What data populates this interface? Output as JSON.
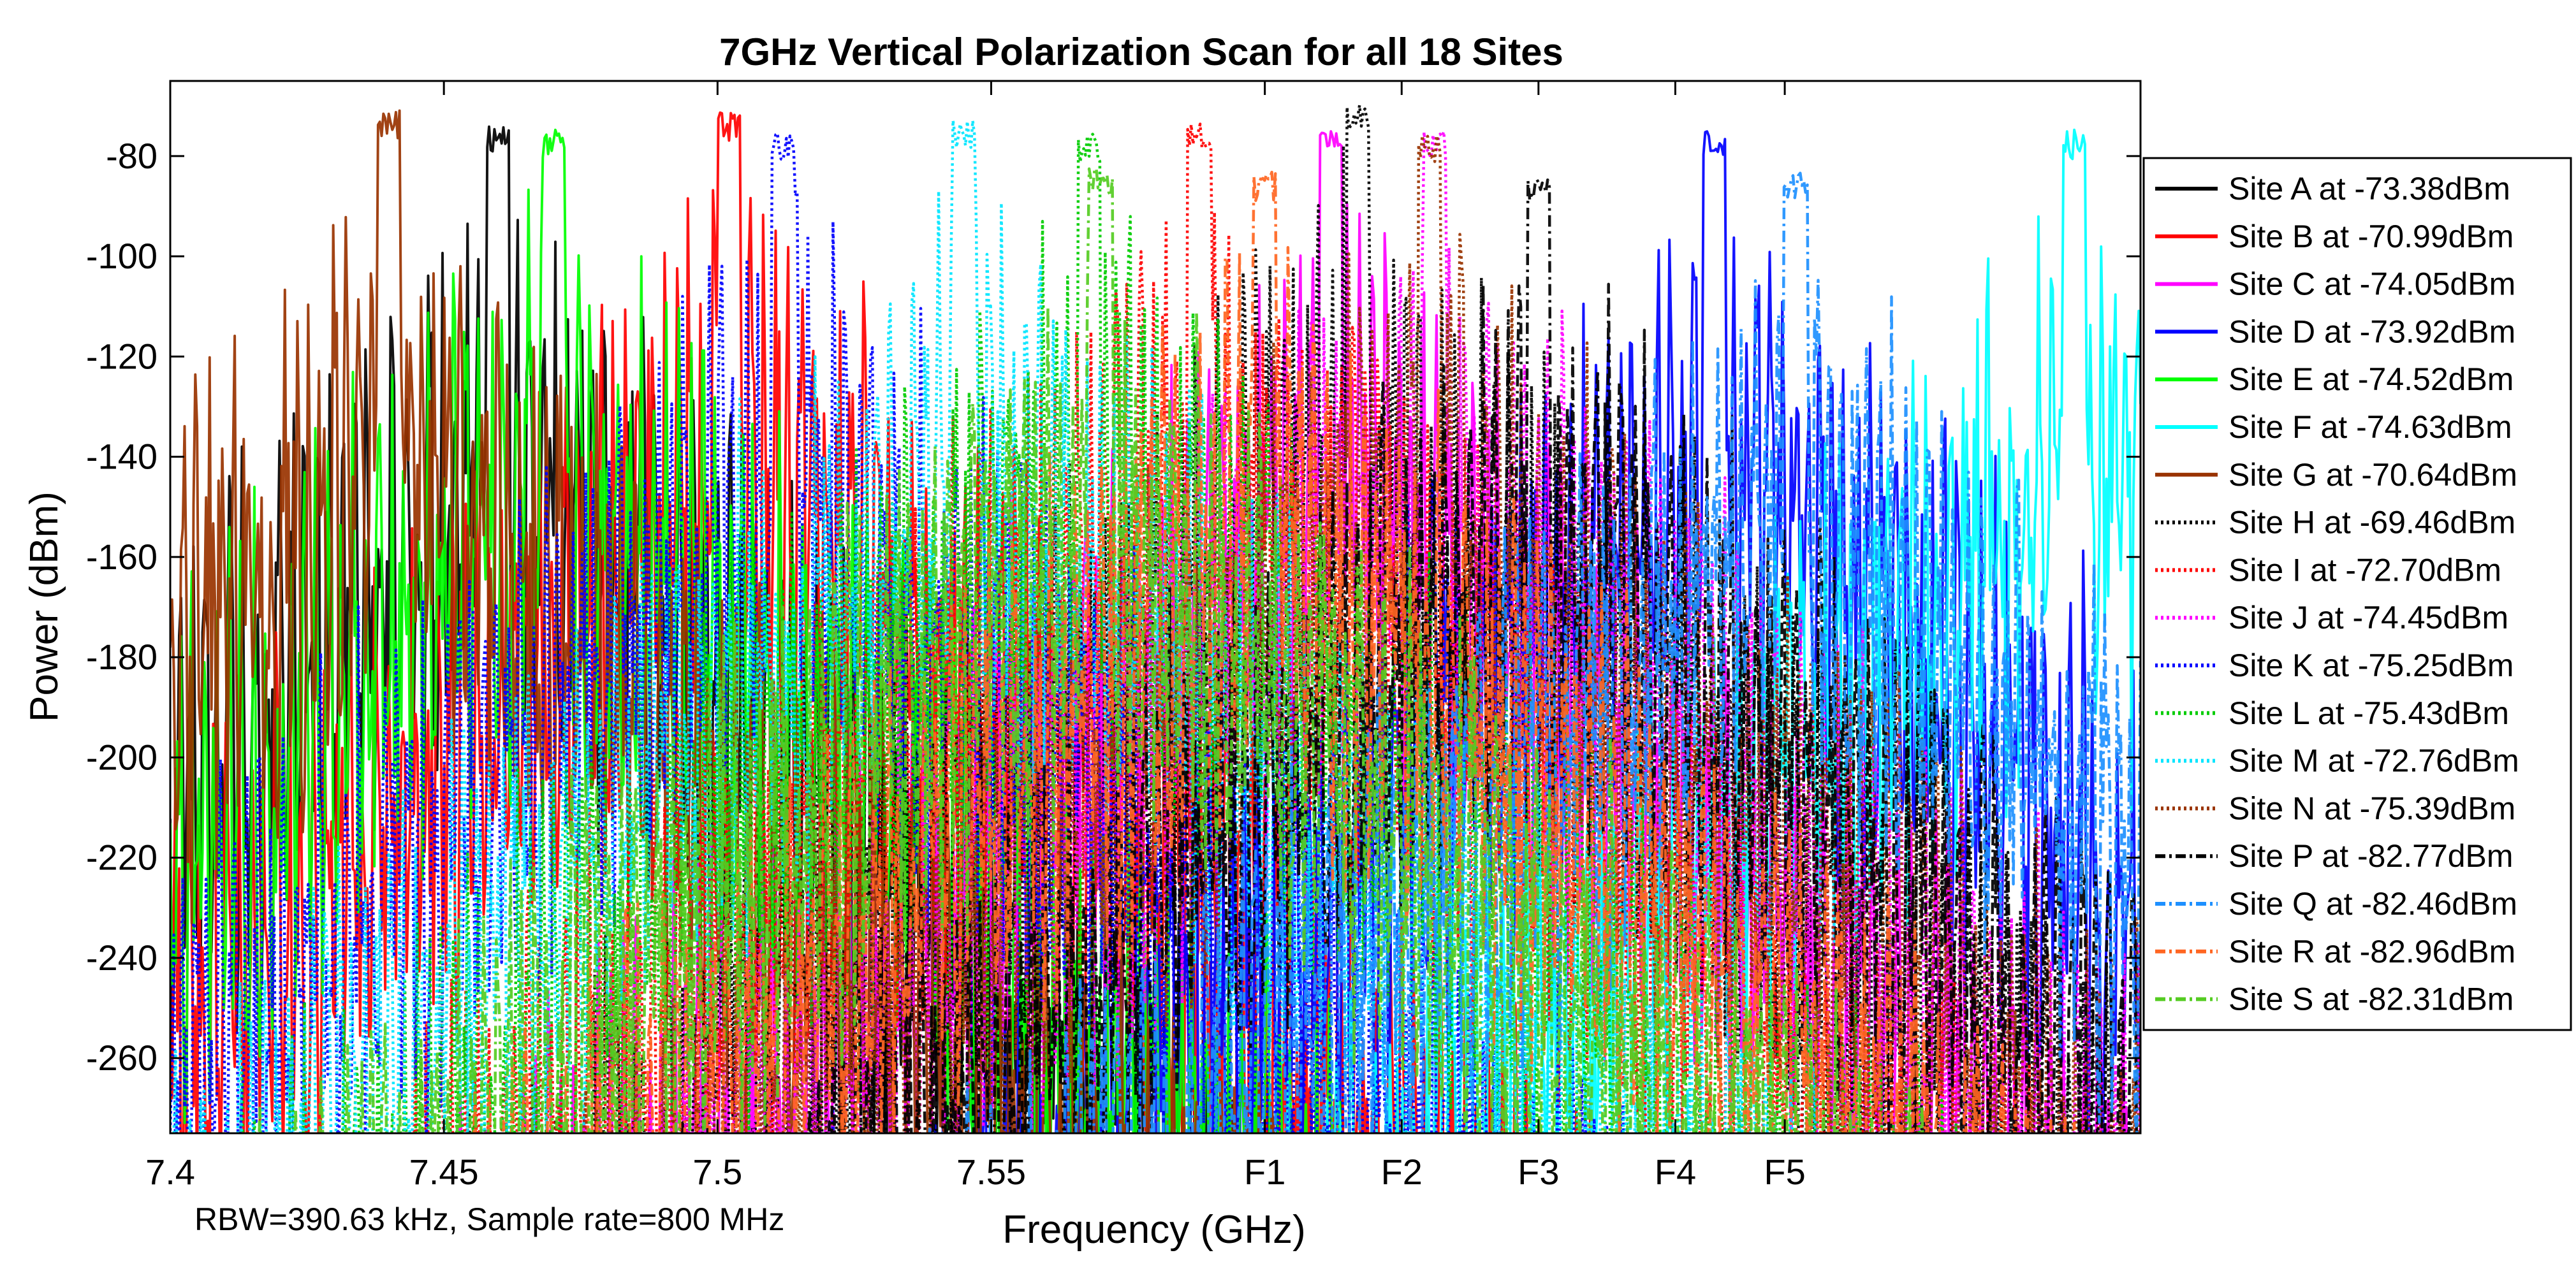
{
  "chart_data": {
    "type": "line",
    "title": "7GHz Vertical Polarization Scan for all 18 Sites",
    "xlabel": "Frequency (GHz)",
    "ylabel": "Power (dBm)",
    "annotation": "RBW=390.63 kHz, Sample rate=800 MHz",
    "xlim": [
      7.4,
      7.76
    ],
    "ylim": [
      -275,
      -65
    ],
    "x_ticks": [
      {
        "value": 7.4,
        "label": "7.4"
      },
      {
        "value": 7.45,
        "label": "7.45"
      },
      {
        "value": 7.5,
        "label": "7.5"
      },
      {
        "value": 7.55,
        "label": "7.55"
      },
      {
        "value": 7.6,
        "label": "F1"
      },
      {
        "value": 7.625,
        "label": "F2"
      },
      {
        "value": 7.65,
        "label": "F3"
      },
      {
        "value": 7.675,
        "label": "F4"
      },
      {
        "value": 7.695,
        "label": "F5"
      }
    ],
    "y_ticks": [
      -80,
      -100,
      -120,
      -140,
      -160,
      -180,
      -200,
      -220,
      -240,
      -260
    ],
    "legend_position": "right",
    "series": [
      {
        "name": "Site A at -73.38dBm",
        "color": "#000000",
        "dash": "solid",
        "center": 7.46,
        "peak": -73.38
      },
      {
        "name": "Site B at -70.99dBm",
        "color": "#ff0000",
        "dash": "solid",
        "center": 7.502,
        "peak": -70.99
      },
      {
        "name": "Site C at -74.05dBm",
        "color": "#ff00ff",
        "dash": "solid",
        "center": 7.612,
        "peak": -74.05
      },
      {
        "name": "Site D at -73.92dBm",
        "color": "#0000ff",
        "dash": "solid",
        "center": 7.682,
        "peak": -73.92
      },
      {
        "name": "Site E at -74.52dBm",
        "color": "#00ff00",
        "dash": "solid",
        "center": 7.47,
        "peak": -74.52
      },
      {
        "name": "Site F at -74.63dBm",
        "color": "#00ffff",
        "dash": "solid",
        "center": 7.748,
        "peak": -74.63
      },
      {
        "name": "Site G at -70.64dBm",
        "color": "#993300",
        "dash": "solid",
        "center": 7.44,
        "peak": -70.64
      },
      {
        "name": "Site H at -69.46dBm",
        "color": "#000000",
        "dash": "dotted",
        "center": 7.617,
        "peak": -69.46
      },
      {
        "name": "Site I at -72.70dBm",
        "color": "#ff0000",
        "dash": "dotted",
        "center": 7.588,
        "peak": -72.7
      },
      {
        "name": "Site J at -74.45dBm",
        "color": "#ff00ff",
        "dash": "dotted",
        "center": 7.631,
        "peak": -74.45
      },
      {
        "name": "Site K at -75.25dBm",
        "color": "#0000ff",
        "dash": "dotted",
        "center": 7.512,
        "peak": -75.25
      },
      {
        "name": "Site L at -75.43dBm",
        "color": "#00cc00",
        "dash": "dotted",
        "center": 7.568,
        "peak": -75.43
      },
      {
        "name": "Site M at -72.76dBm",
        "color": "#00e5ff",
        "dash": "dotted",
        "center": 7.545,
        "peak": -72.76
      },
      {
        "name": "Site N at -75.39dBm",
        "color": "#993300",
        "dash": "dotted",
        "center": 7.63,
        "peak": -75.39
      },
      {
        "name": "Site P at -82.77dBm",
        "color": "#000000",
        "dash": "dashdot",
        "center": 7.65,
        "peak": -82.77
      },
      {
        "name": "Site Q at -82.46dBm",
        "color": "#1e90ff",
        "dash": "dashdot",
        "center": 7.697,
        "peak": -82.46
      },
      {
        "name": "Site R at -82.96dBm",
        "color": "#ff6622",
        "dash": "dashdot",
        "center": 7.6,
        "peak": -82.96
      },
      {
        "name": "Site S at -82.31dBm",
        "color": "#55cc22",
        "dash": "dashdot",
        "center": 7.57,
        "peak": -82.31
      }
    ]
  }
}
